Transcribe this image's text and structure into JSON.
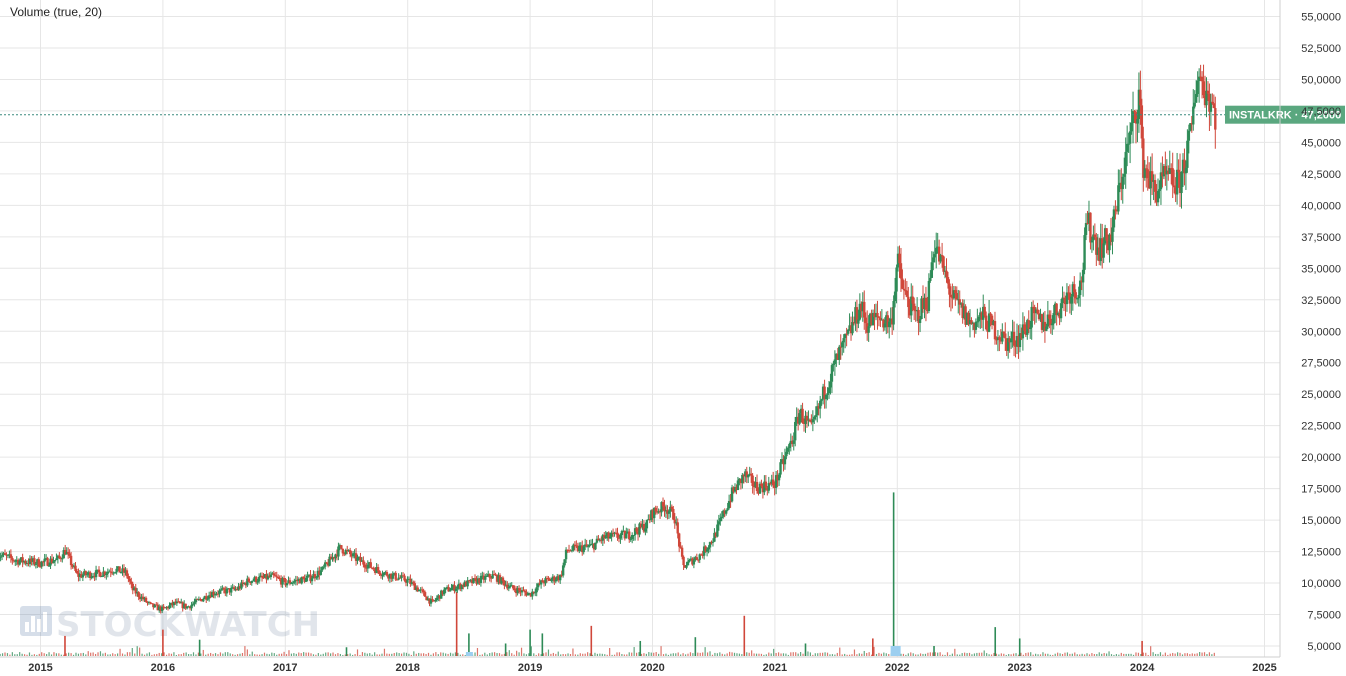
{
  "study_label": "Volume (true, 20)",
  "ticker": {
    "symbol": "INSTALKRK",
    "last_price": "47,2000"
  },
  "watermark": "STOCKWATCH",
  "colors": {
    "up": "#2e8b57",
    "down": "#d0473a",
    "last_price_line": "#3a8a7e",
    "label_bg": "#5aa77f",
    "grid": "#e6e6e6",
    "volume_highlight": "#9ccff0"
  },
  "chart_data": {
    "type": "candlestick",
    "title": "",
    "xlabel": "",
    "ylabel": "",
    "x_range": [
      2014.65,
      2025.2
    ],
    "ylim": [
      4250,
      55750
    ],
    "y_ticks": [
      "55,0000",
      "52,5000",
      "50,0000",
      "47,5000",
      "45,0000",
      "42,5000",
      "40,0000",
      "37,5000",
      "35,0000",
      "32,5000",
      "30,0000",
      "27,5000",
      "25,0000",
      "22,5000",
      "20,0000",
      "17,5000",
      "15,0000",
      "12,5000",
      "10,0000",
      "7,5000",
      "5,0000"
    ],
    "x_ticks": [
      "2015",
      "2016",
      "2017",
      "2018",
      "2019",
      "2020",
      "2021",
      "2022",
      "2023",
      "2024",
      "2025"
    ],
    "grid": true,
    "price_path": [
      [
        2014.65,
        12.3
      ],
      [
        2014.8,
        11.8
      ],
      [
        2015.0,
        11.6
      ],
      [
        2015.15,
        11.9
      ],
      [
        2015.2,
        12.6
      ],
      [
        2015.3,
        10.6
      ],
      [
        2015.5,
        10.8
      ],
      [
        2015.6,
        11.1
      ],
      [
        2015.7,
        10.8
      ],
      [
        2015.75,
        9.5
      ],
      [
        2015.9,
        8.2
      ],
      [
        2016.0,
        7.9
      ],
      [
        2016.1,
        8.4
      ],
      [
        2016.2,
        8.1
      ],
      [
        2016.4,
        9.2
      ],
      [
        2016.6,
        9.5
      ],
      [
        2016.7,
        10.2
      ],
      [
        2016.9,
        10.5
      ],
      [
        2017.0,
        10.0
      ],
      [
        2017.2,
        10.4
      ],
      [
        2017.3,
        11.0
      ],
      [
        2017.45,
        12.8
      ],
      [
        2017.6,
        11.8
      ],
      [
        2017.8,
        10.8
      ],
      [
        2018.0,
        10.2
      ],
      [
        2018.1,
        9.4
      ],
      [
        2018.2,
        8.4
      ],
      [
        2018.3,
        9.4
      ],
      [
        2018.5,
        10.0
      ],
      [
        2018.7,
        10.6
      ],
      [
        2018.85,
        9.6
      ],
      [
        2019.0,
        9.1
      ],
      [
        2019.1,
        10.1
      ],
      [
        2019.25,
        10.5
      ],
      [
        2019.3,
        12.6
      ],
      [
        2019.5,
        12.9
      ],
      [
        2019.6,
        13.6
      ],
      [
        2019.8,
        13.8
      ],
      [
        2019.95,
        14.6
      ],
      [
        2020.0,
        15.6
      ],
      [
        2020.1,
        16.1
      ],
      [
        2020.18,
        15.3
      ],
      [
        2020.25,
        11.3
      ],
      [
        2020.4,
        12.3
      ],
      [
        2020.5,
        13.6
      ],
      [
        2020.65,
        17.1
      ],
      [
        2020.75,
        18.6
      ],
      [
        2020.85,
        17.6
      ],
      [
        2021.0,
        17.9
      ],
      [
        2021.08,
        19.9
      ],
      [
        2021.15,
        21.6
      ],
      [
        2021.2,
        23.6
      ],
      [
        2021.3,
        22.1
      ],
      [
        2021.4,
        25.1
      ],
      [
        2021.5,
        27.6
      ],
      [
        2021.6,
        29.6
      ],
      [
        2021.7,
        32.1
      ],
      [
        2021.75,
        30.6
      ],
      [
        2021.85,
        31.1
      ],
      [
        2021.95,
        30.6
      ],
      [
        2022.0,
        35.6
      ],
      [
        2022.05,
        33.1
      ],
      [
        2022.15,
        31.1
      ],
      [
        2022.25,
        32.6
      ],
      [
        2022.3,
        37.1
      ],
      [
        2022.45,
        32.6
      ],
      [
        2022.6,
        30.6
      ],
      [
        2022.7,
        31.1
      ],
      [
        2022.8,
        30.1
      ],
      [
        2022.9,
        29.1
      ],
      [
        2023.0,
        29.6
      ],
      [
        2023.1,
        31.1
      ],
      [
        2023.2,
        30.6
      ],
      [
        2023.3,
        31.6
      ],
      [
        2023.4,
        33.1
      ],
      [
        2023.5,
        33.6
      ],
      [
        2023.55,
        38.6
      ],
      [
        2023.65,
        36.6
      ],
      [
        2023.75,
        37.6
      ],
      [
        2023.85,
        43.1
      ],
      [
        2023.95,
        47.6
      ],
      [
        2023.98,
        49.1
      ],
      [
        2024.0,
        43.6
      ],
      [
        2024.1,
        41.1
      ],
      [
        2024.2,
        42.1
      ],
      [
        2024.3,
        41.6
      ],
      [
        2024.4,
        45.6
      ],
      [
        2024.45,
        50.6
      ],
      [
        2024.55,
        48.6
      ],
      [
        2024.6,
        47.2
      ]
    ],
    "volume_spikes": [
      [
        2015.2,
        5.8,
        "down"
      ],
      [
        2016.0,
        6.3,
        "down"
      ],
      [
        2016.3,
        5.5,
        "up"
      ],
      [
        2017.5,
        4.9,
        "up"
      ],
      [
        2018.4,
        9.3,
        "down"
      ],
      [
        2018.5,
        6.0,
        "up"
      ],
      [
        2018.8,
        5.2,
        "up"
      ],
      [
        2019.0,
        6.3,
        "up"
      ],
      [
        2019.1,
        6.0,
        "up"
      ],
      [
        2019.5,
        6.6,
        "down"
      ],
      [
        2019.9,
        5.4,
        "up"
      ],
      [
        2020.35,
        5.7,
        "up"
      ],
      [
        2020.75,
        7.4,
        "down"
      ],
      [
        2021.25,
        5.2,
        "up"
      ],
      [
        2021.8,
        5.6,
        "down"
      ],
      [
        2021.97,
        17.2,
        "up"
      ],
      [
        2022.3,
        5.0,
        "up"
      ],
      [
        2022.8,
        6.5,
        "up"
      ],
      [
        2023.0,
        5.6,
        "up"
      ],
      [
        2024.0,
        5.4,
        "down"
      ]
    ]
  }
}
